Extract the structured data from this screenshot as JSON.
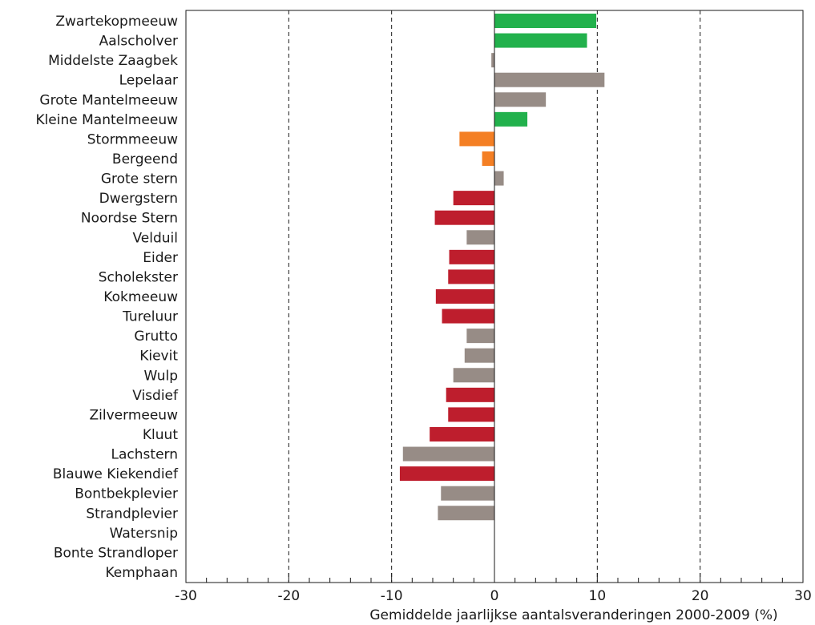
{
  "chart_data": {
    "type": "bar",
    "orientation": "horizontal",
    "xlabel": "Gemiddelde jaarlijkse aantalsveranderingen 2000-2009 (%)",
    "xlim": [
      -30,
      30
    ],
    "x_major_ticks": [
      -30,
      -20,
      -10,
      0,
      10,
      20,
      30
    ],
    "x_minor_step": 2,
    "grid": "vertical dashed at -20, -10, 10, 20",
    "colors": {
      "green": "#22b14c",
      "grey": "#978c86",
      "orange": "#f47f24",
      "red": "#be1e2d"
    },
    "bars": [
      {
        "label": "Zwartekopmeeuw",
        "value": 9.9,
        "color": "green"
      },
      {
        "label": "Aalscholver",
        "value": 9.0,
        "color": "green"
      },
      {
        "label": "Middelste Zaagbek",
        "value": -0.3,
        "color": "grey"
      },
      {
        "label": "Lepelaar",
        "value": 10.7,
        "color": "grey"
      },
      {
        "label": "Grote Mantelmeeuw",
        "value": 5.0,
        "color": "grey"
      },
      {
        "label": "Kleine Mantelmeeuw",
        "value": 3.2,
        "color": "green"
      },
      {
        "label": "Stormmeeuw",
        "value": -3.4,
        "color": "orange"
      },
      {
        "label": "Bergeend",
        "value": -1.2,
        "color": "orange"
      },
      {
        "label": "Grote stern",
        "value": 0.9,
        "color": "grey"
      },
      {
        "label": "Dwergstern",
        "value": -4.0,
        "color": "red"
      },
      {
        "label": "Noordse Stern",
        "value": -5.8,
        "color": "red"
      },
      {
        "label": "Velduil",
        "value": -2.7,
        "color": "grey"
      },
      {
        "label": "Eider",
        "value": -4.4,
        "color": "red"
      },
      {
        "label": "Scholekster",
        "value": -4.5,
        "color": "red"
      },
      {
        "label": "Kokmeeuw",
        "value": -5.7,
        "color": "red"
      },
      {
        "label": "Tureluur",
        "value": -5.1,
        "color": "red"
      },
      {
        "label": "Grutto",
        "value": -2.7,
        "color": "grey"
      },
      {
        "label": "Kievit",
        "value": -2.9,
        "color": "grey"
      },
      {
        "label": "Wulp",
        "value": -4.0,
        "color": "grey"
      },
      {
        "label": "Visdief",
        "value": -4.7,
        "color": "red"
      },
      {
        "label": "Zilvermeeuw",
        "value": -4.5,
        "color": "red"
      },
      {
        "label": "Kluut",
        "value": -6.3,
        "color": "red"
      },
      {
        "label": "Lachstern",
        "value": -8.9,
        "color": "grey"
      },
      {
        "label": "Blauwe Kiekendief",
        "value": -9.2,
        "color": "red"
      },
      {
        "label": "Bontbekplevier",
        "value": -5.2,
        "color": "grey"
      },
      {
        "label": "Strandplevier",
        "value": -5.5,
        "color": "grey"
      },
      {
        "label": "Watersnip",
        "value": null,
        "color": "grey"
      },
      {
        "label": "Bonte Strandloper",
        "value": null,
        "color": "grey"
      },
      {
        "label": "Kemphaan",
        "value": null,
        "color": "grey"
      }
    ]
  }
}
